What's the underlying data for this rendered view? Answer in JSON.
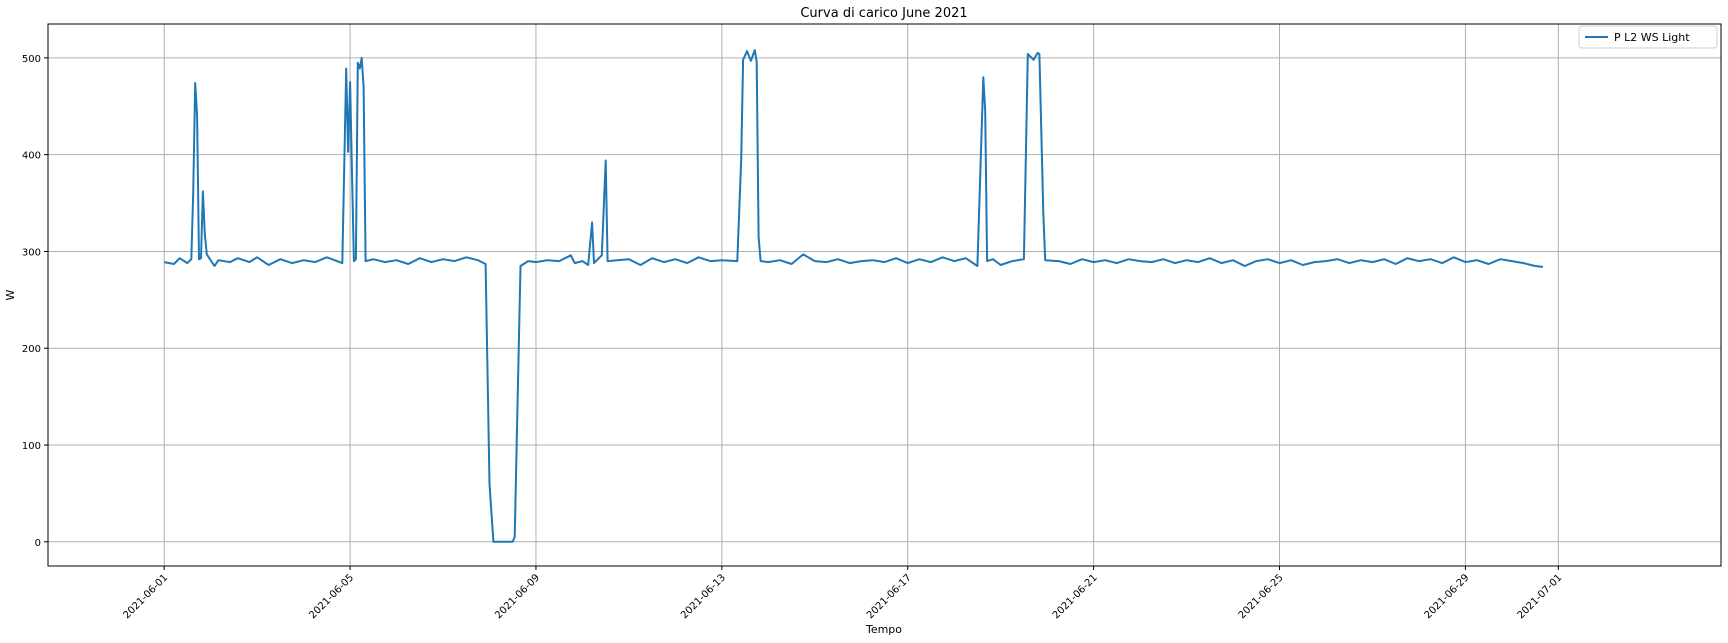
{
  "chart_data": {
    "type": "line",
    "title": "Curva di carico June 2021",
    "xlabel": "Tempo",
    "ylabel": "W",
    "xlim": [
      "2021-05-29T12:00",
      "2021-07-04T12:00"
    ],
    "ylim": [
      -25,
      535
    ],
    "grid": true,
    "legend_position": "top-right",
    "x_ticks": [
      "2021-06-01",
      "2021-06-05",
      "2021-06-09",
      "2021-06-13",
      "2021-06-17",
      "2021-06-21",
      "2021-06-25",
      "2021-06-29",
      "2021-07-01"
    ],
    "y_ticks": [
      0,
      100,
      200,
      300,
      400,
      500
    ],
    "series": [
      {
        "name": "P L2 WS Light",
        "color": "#1f77b4",
        "segments": [
          [
            [
              "2021-06-01T00:00",
              289
            ],
            [
              "2021-06-01T05:00",
              287
            ],
            [
              "2021-06-01T08:00",
              293
            ],
            [
              "2021-06-01T12:00",
              288
            ],
            [
              "2021-06-01T14:00",
              292
            ],
            [
              "2021-06-01T15:00",
              360
            ],
            [
              "2021-06-01T16:00",
              474
            ],
            [
              "2021-06-01T17:00",
              440
            ],
            [
              "2021-06-01T18:00",
              292
            ],
            [
              "2021-06-01T19:00",
              293
            ],
            [
              "2021-06-01T20:00",
              362
            ],
            [
              "2021-06-01T21:00",
              318
            ],
            [
              "2021-06-01T22:00",
              297
            ],
            [
              "2021-06-02T02:00",
              285
            ],
            [
              "2021-06-02T04:00",
              291
            ],
            [
              "2021-06-02T10:00",
              289
            ],
            [
              "2021-06-02T14:00",
              293
            ],
            [
              "2021-06-02T20:00",
              289
            ],
            [
              "2021-06-03T00:00",
              294
            ],
            [
              "2021-06-03T06:00",
              286
            ],
            [
              "2021-06-03T12:00",
              292
            ],
            [
              "2021-06-03T18:00",
              288
            ],
            [
              "2021-06-04T00:00",
              291
            ],
            [
              "2021-06-04T06:00",
              289
            ],
            [
              "2021-06-04T12:00",
              294
            ],
            [
              "2021-06-04T20:00",
              288
            ],
            [
              "2021-06-04T22:00",
              489
            ],
            [
              "2021-06-04T23:00",
              403
            ],
            [
              "2021-06-05T00:00",
              475
            ],
            [
              "2021-06-05T01:00",
              380
            ],
            [
              "2021-06-05T02:00",
              290
            ],
            [
              "2021-06-05T03:00",
              292
            ],
            [
              "2021-06-05T04:00",
              495
            ],
            [
              "2021-06-05T05:00",
              489
            ],
            [
              "2021-06-05T06:00",
              500
            ],
            [
              "2021-06-05T07:00",
              470
            ],
            [
              "2021-06-05T08:00",
              290
            ],
            [
              "2021-06-05T12:00",
              292
            ],
            [
              "2021-06-05T18:00",
              289
            ],
            [
              "2021-06-06T00:00",
              291
            ],
            [
              "2021-06-06T06:00",
              287
            ],
            [
              "2021-06-06T12:00",
              293
            ],
            [
              "2021-06-06T18:00",
              289
            ],
            [
              "2021-06-07T00:00",
              292
            ],
            [
              "2021-06-07T06:00",
              290
            ],
            [
              "2021-06-07T12:00",
              294
            ],
            [
              "2021-06-07T18:00",
              291
            ],
            [
              "2021-06-07T22:00",
              287
            ],
            [
              "2021-06-08T00:00",
              60
            ],
            [
              "2021-06-08T02:00",
              0
            ],
            [
              "2021-06-08T12:00",
              0
            ],
            [
              "2021-06-08T13:00",
              5
            ],
            [
              "2021-06-08T16:00",
              285
            ],
            [
              "2021-06-08T20:00",
              290
            ],
            [
              "2021-06-09T00:00",
              289
            ],
            [
              "2021-06-09T06:00",
              291
            ],
            [
              "2021-06-09T12:00",
              290
            ],
            [
              "2021-06-09T18:00",
              296
            ],
            [
              "2021-06-09T20:00",
              288
            ],
            [
              "2021-06-10T00:00",
              290
            ],
            [
              "2021-06-10T03:00",
              286
            ],
            [
              "2021-06-10T05:00",
              330
            ],
            [
              "2021-06-10T06:00",
              288
            ],
            [
              "2021-06-10T10:00",
              296
            ],
            [
              "2021-06-10T12:00",
              394
            ],
            [
              "2021-06-10T13:00",
              290
            ],
            [
              "2021-06-10T18:00",
              291
            ],
            [
              "2021-06-11T00:00",
              292
            ],
            [
              "2021-06-11T06:00",
              286
            ],
            [
              "2021-06-11T12:00",
              293
            ],
            [
              "2021-06-11T18:00",
              289
            ],
            [
              "2021-06-12T00:00",
              292
            ],
            [
              "2021-06-12T06:00",
              288
            ],
            [
              "2021-06-12T12:00",
              294
            ],
            [
              "2021-06-12T18:00",
              290
            ],
            [
              "2021-06-13T00:00",
              291
            ],
            [
              "2021-06-13T08:00",
              290
            ],
            [
              "2021-06-13T10:00",
              395
            ],
            [
              "2021-06-13T11:00",
              498
            ],
            [
              "2021-06-13T13:00",
              507
            ],
            [
              "2021-06-13T15:00",
              497
            ],
            [
              "2021-06-13T17:00",
              508
            ],
            [
              "2021-06-13T18:00",
              496
            ],
            [
              "2021-06-13T19:00",
              315
            ],
            [
              "2021-06-13T20:00",
              290
            ],
            [
              "2021-06-14T00:00",
              289
            ],
            [
              "2021-06-14T06:00",
              291
            ],
            [
              "2021-06-14T12:00",
              287
            ],
            [
              "2021-06-14T18:00",
              297
            ],
            [
              "2021-06-15T00:00",
              290
            ],
            [
              "2021-06-15T06:00",
              289
            ],
            [
              "2021-06-15T12:00",
              292
            ],
            [
              "2021-06-15T18:00",
              288
            ],
            [
              "2021-06-16T00:00",
              290
            ],
            [
              "2021-06-16T06:00",
              291
            ],
            [
              "2021-06-16T12:00",
              289
            ],
            [
              "2021-06-16T18:00",
              293
            ],
            [
              "2021-06-17T00:00",
              288
            ],
            [
              "2021-06-17T06:00",
              292
            ],
            [
              "2021-06-17T12:00",
              289
            ],
            [
              "2021-06-17T18:00",
              294
            ],
            [
              "2021-06-18T00:00",
              290
            ],
            [
              "2021-06-18T06:00",
              293
            ],
            [
              "2021-06-18T12:00",
              285
            ],
            [
              "2021-06-18T15:00",
              480
            ],
            [
              "2021-06-18T16:00",
              445
            ],
            [
              "2021-06-18T17:00",
              290
            ],
            [
              "2021-06-18T20:00",
              292
            ],
            [
              "2021-06-19T00:00",
              286
            ],
            [
              "2021-06-19T06:00",
              290
            ],
            [
              "2021-06-19T12:00",
              292
            ],
            [
              "2021-06-19T14:00",
              504
            ],
            [
              "2021-06-19T17:00",
              498
            ],
            [
              "2021-06-19T19:00",
              505
            ],
            [
              "2021-06-19T20:00",
              504
            ],
            [
              "2021-06-19T22:00",
              340
            ],
            [
              "2021-06-19T23:00",
              291
            ],
            [
              "2021-06-20T06:00",
              290
            ],
            [
              "2021-06-20T12:00",
              287
            ],
            [
              "2021-06-20T18:00",
              292
            ],
            [
              "2021-06-21T00:00",
              289
            ],
            [
              "2021-06-21T06:00",
              291
            ],
            [
              "2021-06-21T12:00",
              288
            ],
            [
              "2021-06-21T18:00",
              292
            ],
            [
              "2021-06-22T00:00",
              290
            ],
            [
              "2021-06-22T06:00",
              289
            ],
            [
              "2021-06-22T12:00",
              292
            ],
            [
              "2021-06-22T18:00",
              288
            ],
            [
              "2021-06-23T00:00",
              291
            ],
            [
              "2021-06-23T06:00",
              289
            ],
            [
              "2021-06-23T12:00",
              293
            ],
            [
              "2021-06-23T18:00",
              288
            ],
            [
              "2021-06-24T00:00",
              291
            ],
            [
              "2021-06-24T06:00",
              285
            ],
            [
              "2021-06-24T12:00",
              290
            ],
            [
              "2021-06-24T18:00",
              292
            ],
            [
              "2021-06-25T00:00",
              288
            ],
            [
              "2021-06-25T06:00",
              291
            ],
            [
              "2021-06-25T12:00",
              286
            ],
            [
              "2021-06-25T18:00",
              289
            ],
            [
              "2021-06-26T00:00",
              290
            ],
            [
              "2021-06-26T06:00",
              292
            ],
            [
              "2021-06-26T12:00",
              288
            ],
            [
              "2021-06-26T18:00",
              291
            ],
            [
              "2021-06-27T00:00",
              289
            ],
            [
              "2021-06-27T06:00",
              292
            ],
            [
              "2021-06-27T12:00",
              287
            ],
            [
              "2021-06-27T18:00",
              293
            ],
            [
              "2021-06-28T00:00",
              290
            ],
            [
              "2021-06-28T06:00",
              292
            ],
            [
              "2021-06-28T12:00",
              288
            ],
            [
              "2021-06-28T18:00",
              294
            ],
            [
              "2021-06-29T00:00",
              289
            ],
            [
              "2021-06-29T06:00",
              291
            ],
            [
              "2021-06-29T12:00",
              287
            ],
            [
              "2021-06-29T18:00",
              292
            ],
            [
              "2021-06-30T00:00",
              290
            ],
            [
              "2021-06-30T06:00",
              288
            ],
            [
              "2021-06-30T12:00",
              285
            ],
            [
              "2021-06-30T16:00",
              284
            ]
          ]
        ]
      }
    ]
  }
}
